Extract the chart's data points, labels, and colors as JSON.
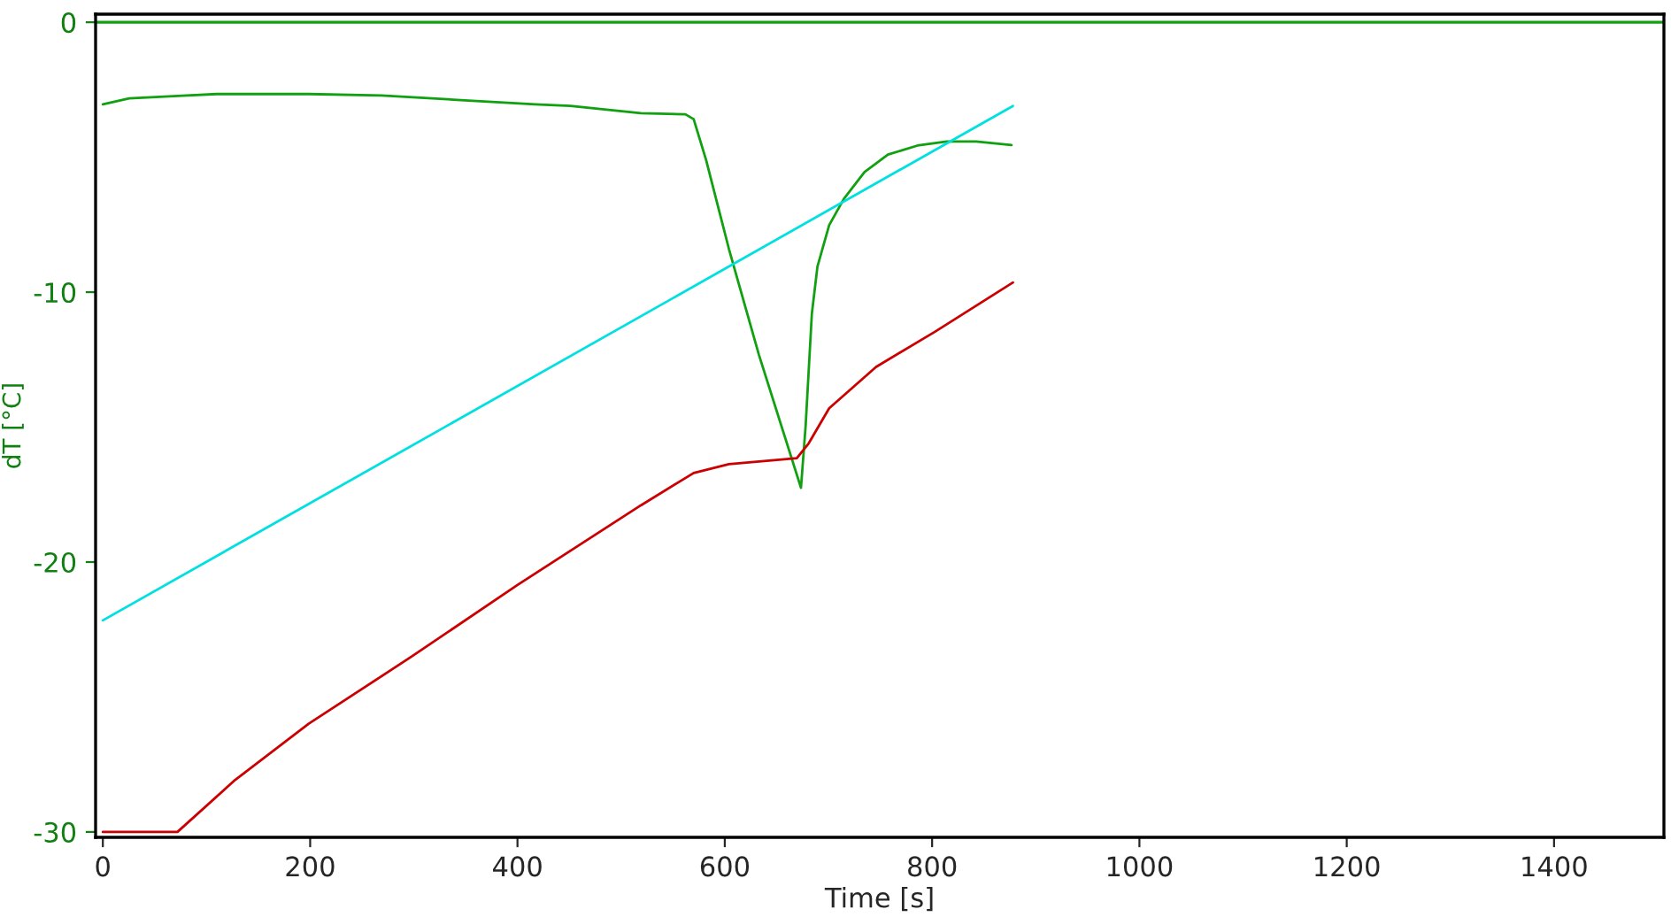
{
  "chart_data": {
    "type": "line",
    "xlabel": "Time [s]",
    "ylabel": "dT [°C]",
    "xlim": [
      -7,
      1506
    ],
    "ylim": [
      -30.2,
      0.3
    ],
    "xticks": [
      0,
      200,
      400,
      600,
      800,
      1000,
      1200,
      1400
    ],
    "yticks": [
      0,
      -10,
      -20,
      -30
    ],
    "grid": false,
    "legend": false,
    "marker": "none",
    "line_style": "solid",
    "ref_lines": [
      {
        "axis": "y",
        "value": 0,
        "color": "#10a010"
      }
    ],
    "series": [
      {
        "color": "#10a010",
        "x": [
          0,
          25.5,
          76.6,
          110,
          199,
          269,
          349,
          417,
          451,
          519,
          562,
          570,
          582,
          604,
          633,
          673.5,
          678,
          684,
          689.4,
          700.7,
          714.9,
          734.8,
          757.4,
          785.8,
          814,
          842.6,
          876.6
        ],
        "values": [
          -3.04,
          -2.82,
          -2.72,
          -2.66,
          -2.66,
          -2.71,
          -2.89,
          -3.04,
          -3.1,
          -3.37,
          -3.41,
          -3.59,
          -5.11,
          -8.4,
          -12.33,
          -17.25,
          -14.95,
          -10.8,
          -9.05,
          -7.52,
          -6.54,
          -5.55,
          -4.9,
          -4.57,
          -4.42,
          -4.42,
          -4.55
        ]
      },
      {
        "color": "#00e0e0",
        "x": [
          0,
          878
        ],
        "values": [
          -22.16,
          -3.1
        ]
      },
      {
        "color": "#cc0000",
        "x": [
          0,
          72,
          127.7,
          198.6,
          298,
          400,
          519,
          570,
          604,
          669.5,
          681,
          700.7,
          746,
          803,
          878
        ],
        "values": [
          -30,
          -30,
          -28.07,
          -25.99,
          -23.5,
          -20.85,
          -17.9,
          -16.7,
          -16.37,
          -16.15,
          -15.6,
          -14.3,
          -12.77,
          -11.46,
          -9.64
        ]
      }
    ]
  }
}
